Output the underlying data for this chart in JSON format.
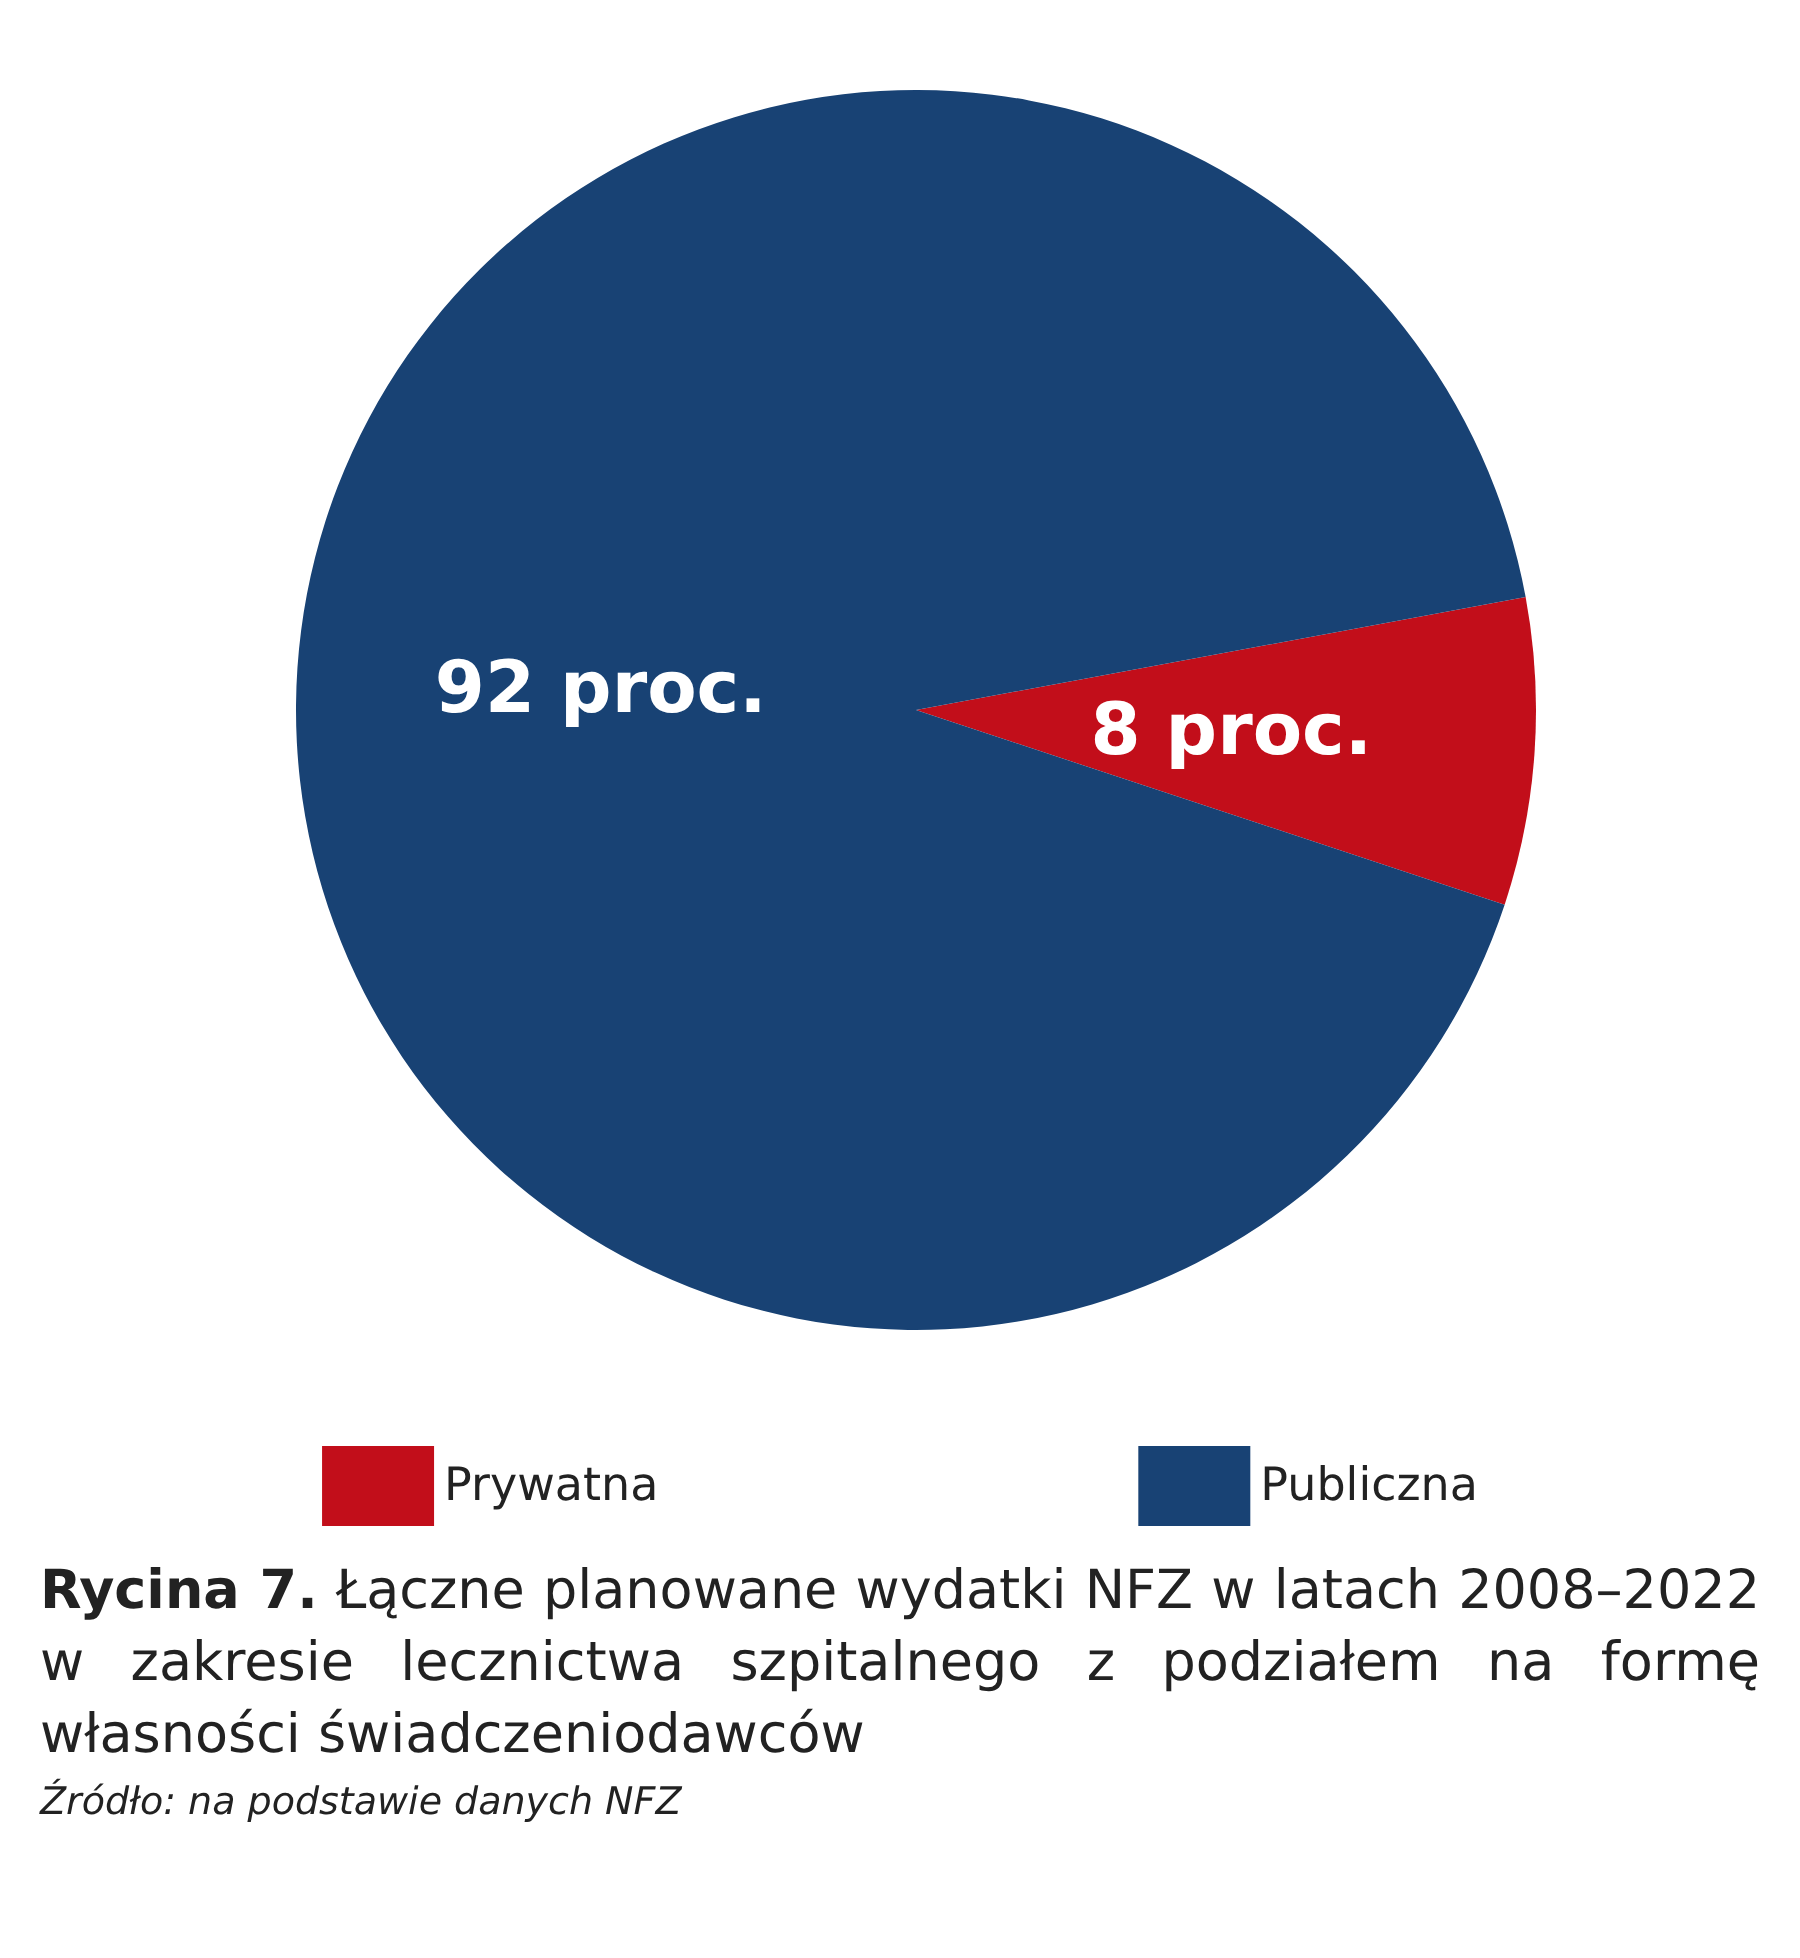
{
  "chart_data": {
    "type": "pie",
    "title": "Rycina 7. Łączne planowane wydatki NFZ w latach 2008–2022 w zakresie lecznictwa szpitalnego z podziałem na formę własności świadczeniodawców",
    "categories": [
      "Prywatna",
      "Publiczna"
    ],
    "values": [
      8,
      92
    ],
    "colors": [
      "#c20e1a",
      "#184274"
    ],
    "value_labels": [
      "8 proc.",
      "92 proc."
    ],
    "legend": "bottom",
    "annotations": [
      "Źródło: na podstawie danych NFZ"
    ]
  }
}
